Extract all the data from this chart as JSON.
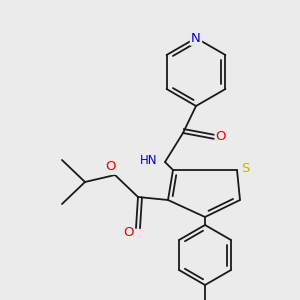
{
  "bg_color": "#ebebeb",
  "bond_color": "#1a1a1a",
  "bond_width": 1.3,
  "dbo": 0.018,
  "atom_colors": {
    "N": "#0000dd",
    "O": "#ee0000",
    "S": "#bbbb00",
    "C": "#1a1a1a"
  },
  "fs": 8.5,
  "figsize": [
    3.0,
    3.0
  ],
  "dpi": 100
}
